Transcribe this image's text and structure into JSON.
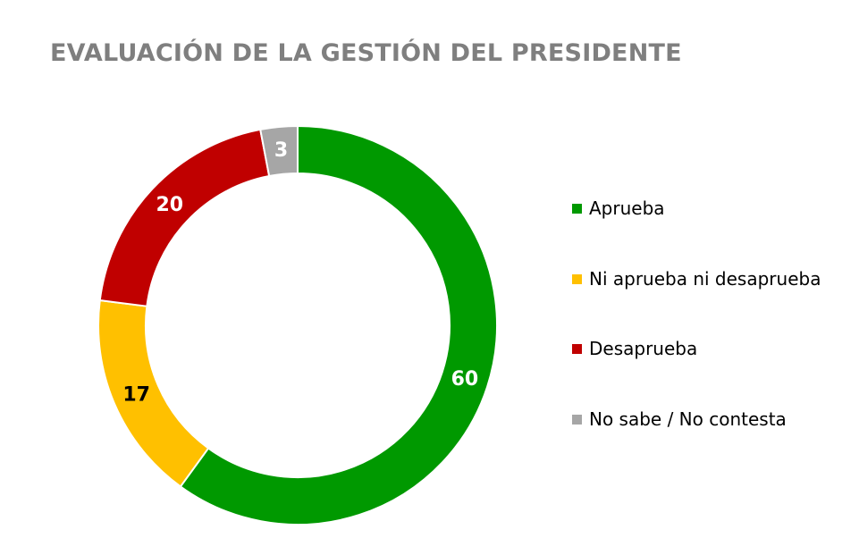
{
  "chart_data": {
    "type": "donut",
    "title": "EVALUACIÓN DE LA GESTIÓN DEL PRESIDENTE",
    "categories": [
      "Aprueba",
      "Ni aprueba ni desaprueba",
      "Desaprueba",
      "No sabe / No contesta"
    ],
    "values": [
      60,
      17,
      20,
      3
    ],
    "colors": [
      "#009900",
      "#ffc000",
      "#c00000",
      "#a6a6a6"
    ],
    "label_colors": [
      "#ffffff",
      "#000000",
      "#ffffff",
      "#ffffff"
    ],
    "data_labels": [
      "60",
      "17",
      "20",
      "3"
    ],
    "start_angle_deg": 0,
    "direction": "clockwise",
    "legend_position": "right"
  }
}
